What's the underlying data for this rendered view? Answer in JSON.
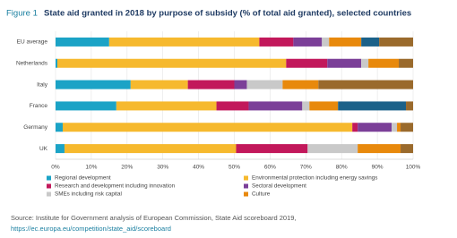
{
  "chart_data": {
    "type": "stacked-barh",
    "title_prefix": "Figure 1",
    "title": "State aid granted in 2018 by purpose of subsidy (% of total aid granted), selected countries",
    "categories": [
      "EU average",
      "Netherlands",
      "Italy",
      "France",
      "Germany",
      "UK"
    ],
    "series": [
      {
        "name": "Regional development",
        "color": "#1ba3c6",
        "values": [
          15,
          0.5,
          21,
          17,
          2,
          2.5
        ]
      },
      {
        "name": "Environmental protection including energy savings",
        "color": "#f6b92e",
        "values": [
          42,
          64,
          16,
          28,
          81,
          48
        ]
      },
      {
        "name": "Research and development including innovation",
        "color": "#c2185b",
        "values": [
          9.5,
          11.5,
          13,
          9,
          1.5,
          20
        ]
      },
      {
        "name": "Sectoral development",
        "color": "#7b3f98",
        "values": [
          8,
          9.5,
          3.5,
          15,
          9.5,
          0
        ]
      },
      {
        "name": "SMEs including risk capital",
        "color": "#c9c9c9",
        "values": [
          2,
          2,
          10,
          2,
          1.5,
          14
        ]
      },
      {
        "name": "Culture",
        "color": "#e8890c",
        "values": [
          9,
          8.5,
          10,
          8,
          1,
          12
        ]
      },
      {
        "name": null,
        "color": "#1b6189",
        "values": [
          5,
          0,
          0,
          19,
          0,
          0
        ]
      },
      {
        "name": null,
        "color": "#9a6a2c",
        "values": [
          9.5,
          4,
          26.5,
          2,
          3.5,
          3.5
        ]
      }
    ],
    "xlim": [
      0,
      100
    ],
    "xticks": [
      {
        "value": 0,
        "label": "0%"
      },
      {
        "value": 10,
        "label": "10%"
      },
      {
        "value": 20,
        "label": "20%"
      },
      {
        "value": 30,
        "label": "30%"
      },
      {
        "value": 40,
        "label": "40%"
      },
      {
        "value": 50,
        "label": "50%"
      },
      {
        "value": 60,
        "label": "60%"
      },
      {
        "value": 70,
        "label": "70%"
      },
      {
        "value": 80,
        "label": "80%"
      },
      {
        "value": 90,
        "label": "90%"
      },
      {
        "value": 100,
        "label": "100%"
      }
    ],
    "grid": true,
    "source": "Source: Institute for Government analysis of European Commission, State Aid scoreboard 2019,",
    "source_url": "https://ec.europa.eu/competition/state_aid/scoreboard"
  }
}
